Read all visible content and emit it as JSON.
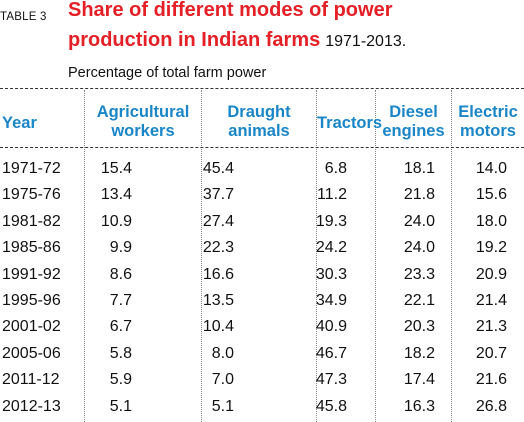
{
  "table_label": "TABLE 3",
  "title": {
    "line1": "Share of different modes of power",
    "line2": "production in Indian farms",
    "years": "1971-2013."
  },
  "subtitle": "Percentage of total farm power",
  "columns": [
    {
      "line1": "Year",
      "line2": ""
    },
    {
      "line1": "Agricultural",
      "line2": "workers"
    },
    {
      "line1": "Draught",
      "line2": "animals"
    },
    {
      "line1": "Tractors",
      "line2": ""
    },
    {
      "line1": "Diesel",
      "line2": "engines"
    },
    {
      "line1": "Electric",
      "line2": "motors"
    }
  ],
  "rows": [
    {
      "year": "1971-72",
      "aw": "15.4",
      "da": "45.4",
      "tr": "6.8",
      "de": "18.1",
      "em": "14.0"
    },
    {
      "year": "1975-76",
      "aw": "13.4",
      "da": "37.7",
      "tr": "11.2",
      "de": "21.8",
      "em": "15.6"
    },
    {
      "year": "1981-82",
      "aw": "10.9",
      "da": "27.4",
      "tr": "19.3",
      "de": "24.0",
      "em": "18.0"
    },
    {
      "year": "1985-86",
      "aw": "9.9",
      "da": "22.3",
      "tr": "24.2",
      "de": "24.0",
      "em": "19.2"
    },
    {
      "year": "1991-92",
      "aw": "8.6",
      "da": "16.6",
      "tr": "30.3",
      "de": "23.3",
      "em": "20.9"
    },
    {
      "year": "1995-96",
      "aw": "7.7",
      "da": "13.5",
      "tr": "34.9",
      "de": "22.1",
      "em": "21.4"
    },
    {
      "year": "2001-02",
      "aw": "6.7",
      "da": "10.4",
      "tr": "40.9",
      "de": "20.3",
      "em": "21.3"
    },
    {
      "year": "2005-06",
      "aw": "5.8",
      "da": "8.0",
      "tr": "46.7",
      "de": "18.2",
      "em": "20.7"
    },
    {
      "year": "2011-12",
      "aw": "5.9",
      "da": "7.0",
      "tr": "47.3",
      "de": "17.4",
      "em": "21.6"
    },
    {
      "year": "2012-13",
      "aw": "5.1",
      "da": "5.1",
      "tr": "45.8",
      "de": "16.3",
      "em": "26.8"
    }
  ],
  "colors": {
    "title": "#e41f26",
    "header": "#1a86c8",
    "text": "#111111"
  }
}
